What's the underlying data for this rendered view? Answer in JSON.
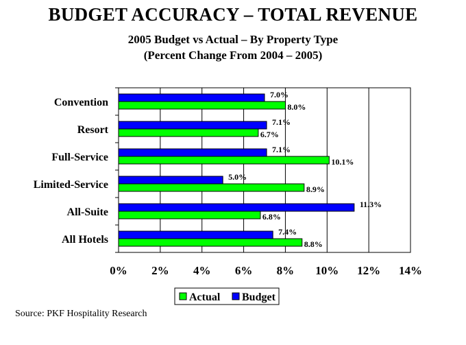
{
  "title": "BUDGET ACCURACY – TOTAL REVENUE",
  "subtitle_line1": "2005 Budget vs Actual – By Property Type",
  "subtitle_line2": "(Percent Change From 2004 – 2005)",
  "source": "Source: PKF Hospitality Research",
  "colors": {
    "actual": "#00ff00",
    "budget": "#0000ff",
    "grid": "#000000"
  },
  "chart_data": {
    "type": "bar",
    "orientation": "horizontal",
    "categories": [
      "Convention",
      "Resort",
      "Full-Service",
      "Limited-Service",
      "All-Suite",
      "All Hotels"
    ],
    "series": [
      {
        "name": "Budget",
        "values": [
          7.0,
          7.1,
          7.1,
          5.0,
          11.3,
          7.4
        ],
        "labels": [
          "7.0%",
          "7.1%",
          "7.1%",
          "5.0%",
          "11.3%",
          "7.4%"
        ]
      },
      {
        "name": "Actual",
        "values": [
          8.0,
          6.7,
          10.1,
          8.9,
          6.8,
          8.8
        ],
        "labels": [
          "8.0%",
          "6.7%",
          "10.1%",
          "8.9%",
          "6.8%",
          "8.8%"
        ]
      }
    ],
    "xlim": [
      0,
      14
    ],
    "xticks": [
      0,
      2,
      4,
      6,
      8,
      10,
      12,
      14
    ],
    "xtick_labels": [
      "0%",
      "2%",
      "4%",
      "6%",
      "8%",
      "10%",
      "12%",
      "14%"
    ],
    "legend": {
      "position": "bottom",
      "entries": [
        "Actual",
        "Budget"
      ]
    },
    "grid": "vertical"
  }
}
